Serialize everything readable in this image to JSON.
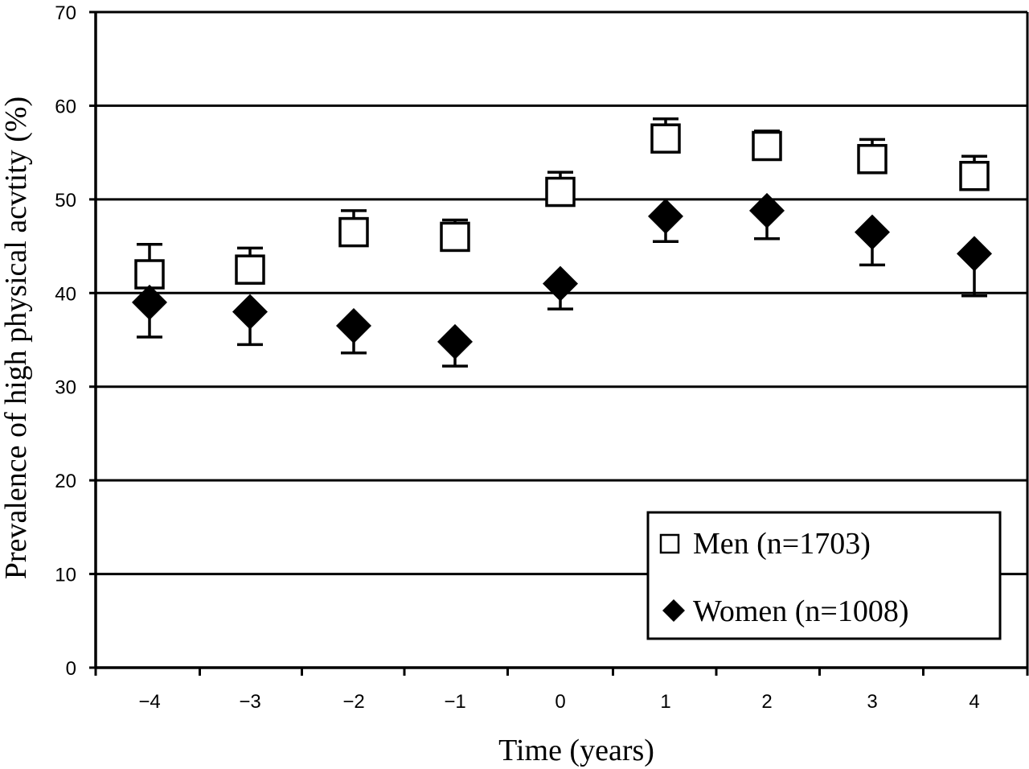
{
  "chart_data": {
    "type": "scatter",
    "title": "",
    "xlabel": "Time (years)",
    "ylabel": "Prevalence of high physical acvtity (%)",
    "x": [
      -4,
      -3,
      -2,
      -1,
      0,
      1,
      2,
      3,
      4
    ],
    "x_tick_labels": [
      "−4",
      "−3",
      "−2",
      "−1",
      "0",
      "1",
      "2",
      "3",
      "4"
    ],
    "ylim": [
      0,
      70
    ],
    "y_ticks": [
      0,
      10,
      20,
      30,
      40,
      50,
      60,
      70
    ],
    "grid": "horizontal",
    "legend_position": "bottom-right",
    "series": [
      {
        "name": "Men (n=1703)",
        "marker": "open-square",
        "color": "#000000",
        "values": [
          42.0,
          42.5,
          46.5,
          46.0,
          50.8,
          56.5,
          55.7,
          54.3,
          52.5
        ],
        "error_bar": "upper",
        "error_ends": [
          45.2,
          44.8,
          48.8,
          47.8,
          52.9,
          58.6,
          57.3,
          56.4,
          54.6
        ]
      },
      {
        "name": "Women (n=1008)",
        "marker": "filled-diamond",
        "color": "#000000",
        "values": [
          39.0,
          38.0,
          36.5,
          34.8,
          41.0,
          48.2,
          48.8,
          46.5,
          44.2
        ],
        "error_bar": "lower",
        "error_ends": [
          35.3,
          34.5,
          33.6,
          32.2,
          38.3,
          45.5,
          45.8,
          43.0,
          39.7
        ]
      }
    ]
  }
}
